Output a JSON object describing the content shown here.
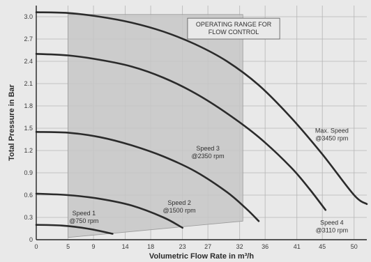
{
  "chart_data": {
    "type": "line",
    "xlabel": "Volumetric Flow Rate in m³/h",
    "ylabel": "Total Pressure in Bar",
    "xlim": [
      0,
      52
    ],
    "ylim": [
      0,
      3.15
    ],
    "x_ticks": [
      0,
      5,
      9,
      14,
      18,
      23,
      27,
      32,
      36,
      41,
      45,
      50
    ],
    "y_ticks": [
      0,
      0.3,
      0.6,
      0.9,
      1.2,
      1.5,
      1.8,
      2.1,
      2.4,
      2.7,
      3.0
    ],
    "y_tick_labels": [
      "0",
      "0.3",
      "0.6",
      "0.9",
      "1.2",
      "1.5",
      "1.8",
      "2.1",
      "2.4",
      "2.7",
      "3.0"
    ],
    "grid": true,
    "colors": {
      "background": "#e9e9e9",
      "grid": "#b5b5b5",
      "curve": "#2b2b2b",
      "region": "#c7c7c7",
      "axis": "#222222"
    },
    "region": {
      "label_lines": [
        "OPERATING RANGE FOR",
        "FLOW CONTROL"
      ],
      "polygon": [
        [
          5.0,
          0.03
        ],
        [
          5.0,
          3.03
        ],
        [
          32.5,
          3.03
        ],
        [
          32.5,
          0.25
        ]
      ]
    },
    "series": [
      {
        "label_lines": [
          "Max. Speed",
          "@3450 rpm"
        ],
        "points": [
          [
            0,
            3.06
          ],
          [
            5,
            3.05
          ],
          [
            10,
            3.0
          ],
          [
            15,
            2.92
          ],
          [
            20,
            2.8
          ],
          [
            25,
            2.63
          ],
          [
            30,
            2.4
          ],
          [
            35,
            2.08
          ],
          [
            40,
            1.65
          ],
          [
            45,
            1.15
          ],
          [
            50,
            0.6
          ],
          [
            52,
            0.48
          ]
        ]
      },
      {
        "label_lines": [
          "Speed 4",
          "@3110 rpm"
        ],
        "points": [
          [
            0,
            2.5
          ],
          [
            5,
            2.48
          ],
          [
            10,
            2.42
          ],
          [
            15,
            2.33
          ],
          [
            20,
            2.18
          ],
          [
            25,
            1.97
          ],
          [
            30,
            1.7
          ],
          [
            35,
            1.38
          ],
          [
            40,
            0.98
          ],
          [
            43,
            0.68
          ],
          [
            45.5,
            0.4
          ]
        ]
      },
      {
        "label_lines": [
          "Speed 3",
          "@2350 rpm"
        ],
        "points": [
          [
            0,
            1.45
          ],
          [
            5,
            1.44
          ],
          [
            10,
            1.38
          ],
          [
            15,
            1.27
          ],
          [
            20,
            1.12
          ],
          [
            25,
            0.92
          ],
          [
            30,
            0.64
          ],
          [
            33,
            0.42
          ],
          [
            35,
            0.25
          ]
        ]
      },
      {
        "label_lines": [
          "Speed 2",
          "@1500 rpm"
        ],
        "points": [
          [
            0,
            0.62
          ],
          [
            5,
            0.6
          ],
          [
            10,
            0.55
          ],
          [
            15,
            0.46
          ],
          [
            20,
            0.3
          ],
          [
            23,
            0.16
          ]
        ]
      },
      {
        "label_lines": [
          "Speed 1",
          "@750 rpm"
        ],
        "points": [
          [
            0,
            0.2
          ],
          [
            4,
            0.19
          ],
          [
            8,
            0.15
          ],
          [
            12,
            0.08
          ]
        ]
      }
    ]
  }
}
